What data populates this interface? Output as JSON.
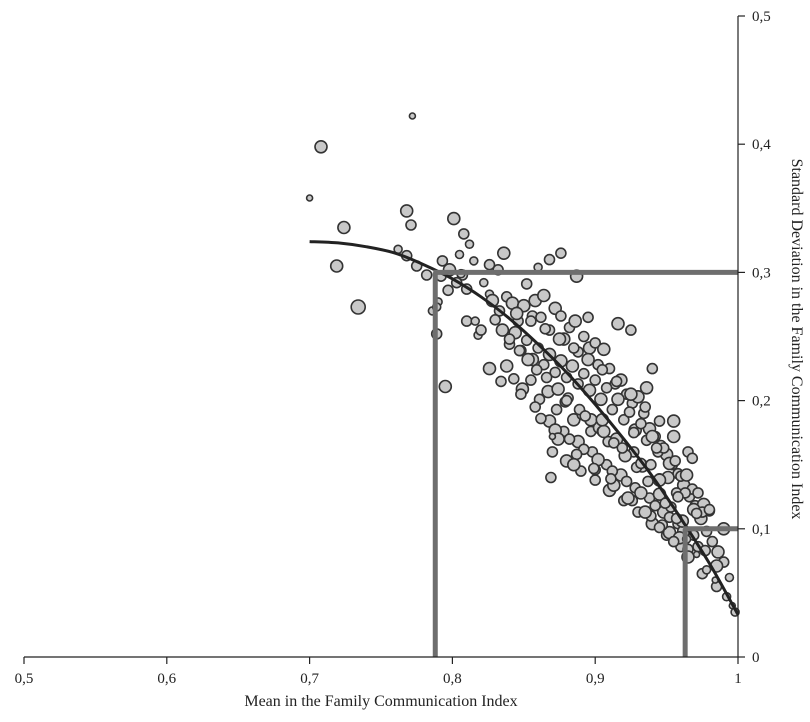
{
  "chart_data": {
    "type": "scatter",
    "title": "",
    "xlabel": "Mean in the Family Communication Index",
    "ylabel": "Standard Deviation in the Family Communication Index",
    "xlim": [
      0.5,
      1.0
    ],
    "ylim": [
      0.0,
      0.5
    ],
    "x_ticks": [
      "0,5",
      "0,6",
      "0,7",
      "0,8",
      "0,9",
      "1"
    ],
    "y_ticks": [
      "0",
      "0,1",
      "0,2",
      "0,3",
      "0,4",
      "0,5"
    ],
    "y_axis_position": "right",
    "grid": false,
    "legend": "none",
    "colors": {
      "point_fill": "#c8c8c8",
      "point_stroke": "#333333",
      "curve": "#222222",
      "reference_lines": "#6e6e6e",
      "axis": "#222222"
    },
    "reference_lines": [
      {
        "name": "sd_0.3",
        "y": 0.3,
        "x_at_curve": 0.788
      },
      {
        "name": "sd_0.1",
        "y": 0.1,
        "x_at_curve": 0.963
      }
    ],
    "fitted_curve": {
      "x": [
        0.7,
        0.72,
        0.74,
        0.76,
        0.78,
        0.8,
        0.82,
        0.84,
        0.86,
        0.88,
        0.9,
        0.92,
        0.94,
        0.96,
        0.98,
        1.0
      ],
      "y": [
        0.324,
        0.323,
        0.32,
        0.315,
        0.306,
        0.295,
        0.281,
        0.264,
        0.244,
        0.222,
        0.197,
        0.17,
        0.141,
        0.108,
        0.073,
        0.033
      ]
    },
    "scatter_points": {
      "x": [
        0.708,
        0.772,
        0.7,
        0.734,
        0.719,
        0.724,
        0.768,
        0.771,
        0.768,
        0.762,
        0.775,
        0.782,
        0.79,
        0.786,
        0.789,
        0.801,
        0.793,
        0.797,
        0.808,
        0.805,
        0.812,
        0.807,
        0.815,
        0.822,
        0.826,
        0.832,
        0.836,
        0.826,
        0.818,
        0.81,
        0.795,
        0.789,
        0.792,
        0.798,
        0.803,
        0.806,
        0.81,
        0.816,
        0.828,
        0.833,
        0.838,
        0.842,
        0.846,
        0.85,
        0.852,
        0.856,
        0.858,
        0.862,
        0.864,
        0.868,
        0.872,
        0.876,
        0.878,
        0.882,
        0.886,
        0.888,
        0.892,
        0.896,
        0.9,
        0.902,
        0.906,
        0.91,
        0.914,
        0.918,
        0.922,
        0.926,
        0.93,
        0.934,
        0.938,
        0.942,
        0.946,
        0.95,
        0.954,
        0.958,
        0.962,
        0.966,
        0.97,
        0.974,
        0.978,
        0.982,
        0.986,
        0.99,
        0.994,
        0.84,
        0.844,
        0.848,
        0.852,
        0.856,
        0.86,
        0.864,
        0.868,
        0.872,
        0.876,
        0.88,
        0.884,
        0.888,
        0.892,
        0.896,
        0.9,
        0.904,
        0.908,
        0.912,
        0.916,
        0.92,
        0.924,
        0.928,
        0.932,
        0.936,
        0.94,
        0.944,
        0.948,
        0.952,
        0.956,
        0.96,
        0.964,
        0.968,
        0.972,
        0.976,
        0.98,
        0.838,
        0.843,
        0.849,
        0.855,
        0.861,
        0.867,
        0.873,
        0.879,
        0.885,
        0.891,
        0.897,
        0.903,
        0.909,
        0.915,
        0.921,
        0.927,
        0.933,
        0.939,
        0.945,
        0.951,
        0.957,
        0.963,
        0.969,
        0.975,
        0.848,
        0.858,
        0.868,
        0.878,
        0.888,
        0.898,
        0.908,
        0.918,
        0.928,
        0.938,
        0.948,
        0.958,
        0.87,
        0.88,
        0.89,
        0.9,
        0.91,
        0.92,
        0.93,
        0.94,
        0.95,
        0.96,
        0.845,
        0.855,
        0.865,
        0.875,
        0.885,
        0.895,
        0.905,
        0.915,
        0.925,
        0.935,
        0.945,
        0.955,
        0.965,
        0.862,
        0.872,
        0.882,
        0.892,
        0.902,
        0.912,
        0.922,
        0.932,
        0.942,
        0.952,
        0.962,
        0.972,
        0.83,
        0.835,
        0.84,
        0.847,
        0.853,
        0.859,
        0.866,
        0.874,
        0.881,
        0.889,
        0.897,
        0.905,
        0.913,
        0.921,
        0.929,
        0.937,
        0.945,
        0.953,
        0.961,
        0.969,
        0.977,
        0.985,
        0.88,
        0.893,
        0.906,
        0.919,
        0.932,
        0.945,
        0.958,
        0.971,
        0.874,
        0.887,
        0.9,
        0.913,
        0.926,
        0.939,
        0.952,
        0.965,
        0.82,
        0.826,
        0.834,
        0.869,
        0.885,
        0.899,
        0.911,
        0.923,
        0.935,
        0.947,
        0.959,
        0.925,
        0.94,
        0.955,
        0.968,
        0.98,
        0.99,
        0.985,
        0.975,
        0.965,
        0.955,
        0.945,
        0.935,
        0.868,
        0.876,
        0.916,
        0.86,
        0.887,
        0.895,
        0.87,
        0.905,
        0.927,
        0.943,
        0.936,
        0.949,
        0.957,
        0.964,
        0.971,
        0.978,
        0.984,
        0.992,
        0.996,
        0.998
      ],
      "y": [
        0.398,
        0.422,
        0.358,
        0.273,
        0.305,
        0.335,
        0.348,
        0.337,
        0.313,
        0.318,
        0.305,
        0.298,
        0.277,
        0.27,
        0.252,
        0.342,
        0.309,
        0.286,
        0.33,
        0.314,
        0.322,
        0.298,
        0.309,
        0.292,
        0.306,
        0.302,
        0.315,
        0.283,
        0.251,
        0.262,
        0.211,
        0.273,
        0.297,
        0.302,
        0.292,
        0.299,
        0.287,
        0.262,
        0.278,
        0.27,
        0.281,
        0.276,
        0.262,
        0.274,
        0.291,
        0.266,
        0.278,
        0.265,
        0.282,
        0.255,
        0.272,
        0.266,
        0.248,
        0.257,
        0.262,
        0.238,
        0.25,
        0.241,
        0.245,
        0.228,
        0.24,
        0.225,
        0.213,
        0.216,
        0.205,
        0.198,
        0.203,
        0.19,
        0.178,
        0.172,
        0.165,
        0.158,
        0.15,
        0.143,
        0.134,
        0.125,
        0.118,
        0.108,
        0.098,
        0.09,
        0.082,
        0.074,
        0.062,
        0.244,
        0.253,
        0.239,
        0.247,
        0.232,
        0.241,
        0.228,
        0.236,
        0.222,
        0.231,
        0.218,
        0.227,
        0.213,
        0.221,
        0.208,
        0.216,
        0.201,
        0.21,
        0.193,
        0.201,
        0.185,
        0.191,
        0.177,
        0.182,
        0.169,
        0.172,
        0.16,
        0.163,
        0.151,
        0.153,
        0.141,
        0.142,
        0.131,
        0.128,
        0.119,
        0.114,
        0.227,
        0.217,
        0.209,
        0.216,
        0.201,
        0.207,
        0.193,
        0.199,
        0.185,
        0.189,
        0.176,
        0.179,
        0.168,
        0.17,
        0.158,
        0.16,
        0.149,
        0.15,
        0.139,
        0.14,
        0.128,
        0.128,
        0.115,
        0.113,
        0.205,
        0.195,
        0.184,
        0.176,
        0.168,
        0.16,
        0.15,
        0.142,
        0.132,
        0.124,
        0.113,
        0.104,
        0.16,
        0.153,
        0.145,
        0.138,
        0.13,
        0.122,
        0.113,
        0.104,
        0.095,
        0.086,
        0.268,
        0.262,
        0.256,
        0.248,
        0.241,
        0.232,
        0.224,
        0.215,
        0.205,
        0.195,
        0.184,
        0.172,
        0.16,
        0.186,
        0.177,
        0.17,
        0.162,
        0.154,
        0.145,
        0.137,
        0.128,
        0.118,
        0.109,
        0.098,
        0.086,
        0.263,
        0.255,
        0.248,
        0.239,
        0.232,
        0.224,
        0.218,
        0.209,
        0.202,
        0.193,
        0.185,
        0.176,
        0.167,
        0.157,
        0.148,
        0.137,
        0.127,
        0.117,
        0.106,
        0.095,
        0.083,
        0.071,
        0.2,
        0.188,
        0.176,
        0.163,
        0.151,
        0.138,
        0.125,
        0.112,
        0.17,
        0.158,
        0.146,
        0.134,
        0.122,
        0.11,
        0.097,
        0.084,
        0.255,
        0.225,
        0.215,
        0.14,
        0.15,
        0.147,
        0.139,
        0.124,
        0.113,
        0.103,
        0.093,
        0.255,
        0.225,
        0.184,
        0.155,
        0.115,
        0.1,
        0.055,
        0.065,
        0.078,
        0.09,
        0.101,
        0.113,
        0.31,
        0.315,
        0.26,
        0.304,
        0.297,
        0.265,
        0.172,
        0.185,
        0.175,
        0.163,
        0.21,
        0.12,
        0.108,
        0.092,
        0.08,
        0.068,
        0.06,
        0.047,
        0.04,
        0.035
      ],
      "r": [
        6,
        3,
        3,
        7,
        6,
        6,
        6,
        5,
        5,
        4,
        5,
        5,
        4,
        4,
        5,
        6,
        5,
        5,
        5,
        4,
        4,
        5,
        4,
        4,
        5,
        5,
        6,
        4,
        4,
        5,
        6,
        4,
        5,
        6,
        5,
        4,
        5,
        4,
        6,
        5,
        5,
        6,
        5,
        6,
        5,
        5,
        6,
        5,
        6,
        5,
        6,
        5,
        6,
        5,
        6,
        5,
        5,
        6,
        5,
        5,
        6,
        5,
        5,
        6,
        5,
        5,
        6,
        5,
        6,
        5,
        5,
        6,
        5,
        5,
        6,
        5,
        5,
        6,
        5,
        5,
        6,
        5,
        4,
        5,
        6,
        5,
        5,
        6,
        5,
        5,
        6,
        5,
        6,
        5,
        6,
        5,
        5,
        6,
        5,
        6,
        5,
        5,
        6,
        5,
        5,
        6,
        5,
        5,
        6,
        5,
        5,
        6,
        5,
        5,
        6,
        5,
        5,
        6,
        5,
        6,
        5,
        6,
        5,
        5,
        6,
        5,
        5,
        6,
        5,
        5,
        6,
        5,
        6,
        5,
        5,
        6,
        5,
        5,
        6,
        5,
        5,
        6,
        5,
        5,
        5,
        6,
        5,
        6,
        5,
        5,
        6,
        5,
        5,
        6,
        5,
        5,
        6,
        5,
        5,
        6,
        5,
        5,
        6,
        5,
        5,
        6,
        5,
        5,
        6,
        5,
        6,
        5,
        5,
        6,
        5,
        5,
        6,
        5,
        5,
        6,
        5,
        5,
        6,
        5,
        5,
        6,
        5,
        5,
        6,
        5,
        5,
        6,
        5,
        5,
        6,
        5,
        5,
        6,
        5,
        5,
        6,
        5,
        5,
        6,
        5,
        5,
        6,
        5,
        6,
        5,
        5,
        6,
        5,
        5,
        6,
        5,
        5,
        6,
        5,
        5,
        6,
        5,
        5,
        6,
        5,
        5,
        6,
        5,
        5,
        6,
        5,
        5,
        6,
        5,
        5,
        6,
        5,
        5,
        6,
        5,
        5,
        6,
        5,
        5,
        6,
        5,
        5,
        6,
        5,
        5,
        6,
        5,
        5,
        6,
        4,
        6,
        5,
        3,
        6,
        5,
        5,
        6,
        5,
        5,
        4,
        3,
        4,
        3,
        4,
        3,
        4,
        3,
        4,
        3,
        3
      ]
    }
  }
}
